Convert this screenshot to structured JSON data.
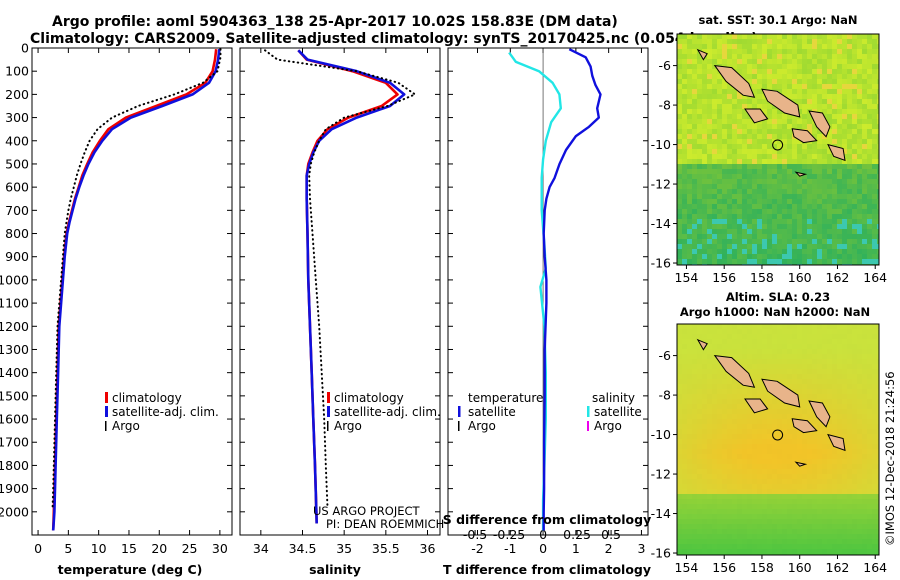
{
  "header": {
    "line1": "Argo profile: aoml 5904363_138 25-Apr-2017 10.02S 158.83E (DM data)",
    "line2": "Climatology: CARS2009. Satellite-adjusted climatology: synTS_20170425.nc (0.054d earlier)"
  },
  "colors": {
    "climatology": "#ee0000",
    "satellite": "#1010dd",
    "argo": "#000000",
    "s_diff": "#22e6e6",
    "s_argo": "#ee00ee"
  },
  "chart_data": [
    {
      "id": "temperature",
      "type": "line",
      "xlabel": "temperature (deg C)",
      "ylim": [
        2100,
        0
      ],
      "xlim": [
        -1,
        32
      ],
      "xticks": [
        0,
        5,
        10,
        15,
        20,
        25,
        30
      ],
      "yticks": [
        0,
        100,
        200,
        300,
        400,
        500,
        600,
        700,
        800,
        900,
        1000,
        1100,
        1200,
        1300,
        1400,
        1500,
        1600,
        1700,
        1800,
        1900,
        2000
      ],
      "legend": [
        "climatology",
        "satellite-adj. clim.",
        "Argo"
      ],
      "series": [
        {
          "name": "climatology",
          "style": "solid",
          "x": [
            29.4,
            29.2,
            28.8,
            27.6,
            24.5,
            19.5,
            14.5,
            11.6,
            10.2,
            9.0,
            8.1,
            7.3,
            6.7,
            6.1,
            5.6,
            5.1,
            4.7,
            4.3,
            4.0,
            3.7,
            3.4,
            3.2,
            3.0,
            2.8,
            2.6,
            2.5
          ],
          "y": [
            5,
            50,
            100,
            150,
            200,
            250,
            300,
            350,
            400,
            450,
            500,
            550,
            600,
            650,
            700,
            750,
            800,
            900,
            1000,
            1100,
            1200,
            1400,
            1600,
            1800,
            2000,
            2080
          ]
        },
        {
          "name": "satellite-adj. clim.",
          "style": "solid",
          "x": [
            29.9,
            29.7,
            29.3,
            28.2,
            25.5,
            20.5,
            15.3,
            12.2,
            10.6,
            9.3,
            8.3,
            7.5,
            6.8,
            6.2,
            5.7,
            5.2,
            4.8,
            4.4,
            4.1,
            3.8,
            3.5,
            3.3,
            3.1,
            2.9,
            2.7,
            2.5
          ],
          "y": [
            5,
            50,
            100,
            150,
            200,
            250,
            300,
            350,
            400,
            450,
            500,
            550,
            600,
            650,
            700,
            750,
            800,
            900,
            1000,
            1100,
            1200,
            1400,
            1600,
            1800,
            2000,
            2080
          ]
        },
        {
          "name": "Argo",
          "style": "dotted",
          "x": [
            30.1,
            30.1,
            29.6,
            27.2,
            22.5,
            16.5,
            12.2,
            9.8,
            8.5,
            7.7,
            7.0,
            6.4,
            5.9,
            5.4,
            5.0,
            4.7,
            4.4,
            4.1,
            3.8,
            3.5,
            3.2,
            3.0,
            2.8,
            2.6,
            2.5,
            2.4
          ],
          "y": [
            5,
            40,
            100,
            150,
            200,
            250,
            300,
            350,
            400,
            450,
            500,
            550,
            600,
            650,
            700,
            750,
            800,
            900,
            1000,
            1100,
            1200,
            1400,
            1600,
            1800,
            1900,
            1980
          ]
        }
      ]
    },
    {
      "id": "salinity",
      "type": "line",
      "xlabel": "salinity",
      "ylim": [
        2100,
        0
      ],
      "xlim": [
        33.75,
        36.15
      ],
      "xticks": [
        34,
        34.5,
        35,
        35.5,
        36
      ],
      "legend": [
        "climatology",
        "satellite-adj. clim.",
        "Argo"
      ],
      "series": [
        {
          "name": "climatology",
          "style": "solid",
          "x": [
            34.45,
            34.55,
            35.1,
            35.5,
            35.64,
            35.45,
            35.05,
            34.8,
            34.68,
            34.62,
            34.57,
            34.55,
            34.55,
            34.56,
            34.57,
            34.59,
            34.61,
            34.63,
            34.65,
            34.67
          ],
          "y": [
            10,
            50,
            100,
            150,
            200,
            250,
            300,
            350,
            400,
            450,
            500,
            550,
            650,
            800,
            1000,
            1200,
            1400,
            1600,
            1800,
            2050
          ]
        },
        {
          "name": "satellite-adj. clim.",
          "style": "solid",
          "x": [
            34.45,
            34.56,
            35.15,
            35.55,
            35.72,
            35.55,
            35.15,
            34.85,
            34.7,
            34.63,
            34.58,
            34.55,
            34.55,
            34.56,
            34.57,
            34.59,
            34.61,
            34.63,
            34.65,
            34.67
          ],
          "y": [
            10,
            50,
            100,
            150,
            200,
            250,
            300,
            350,
            400,
            450,
            500,
            550,
            650,
            800,
            1000,
            1200,
            1400,
            1600,
            1800,
            2050
          ]
        },
        {
          "name": "Argo",
          "style": "dotted",
          "x": [
            34.05,
            34.2,
            35.15,
            35.65,
            35.85,
            35.52,
            35.0,
            34.78,
            34.7,
            34.64,
            34.6,
            34.58,
            34.59,
            34.62,
            34.66,
            34.7,
            34.73,
            34.76,
            34.78,
            34.8
          ],
          "y": [
            10,
            50,
            100,
            150,
            200,
            250,
            300,
            350,
            400,
            450,
            500,
            550,
            650,
            800,
            1000,
            1200,
            1400,
            1600,
            1800,
            1980
          ]
        }
      ]
    },
    {
      "id": "difference",
      "type": "line",
      "xlabel": "T difference from climatology",
      "xlabel_top": "S difference from climatology",
      "ylim": [
        2100,
        0
      ],
      "xlim": [
        -2.9,
        3.2
      ],
      "xticks": [
        -2,
        -1,
        0,
        1,
        2,
        3
      ],
      "xticks_s": [
        -0.5,
        -0.25,
        0,
        0.25,
        0.5
      ],
      "xticks_s_labels": [
        "-0.5",
        "-0.25",
        "0",
        "0.25",
        "0.5"
      ],
      "legend_t_title": "temperature",
      "legend_s_title": "salinity",
      "legend_t": [
        "satellite",
        "Argo"
      ],
      "legend_s": [
        "satellite",
        "Argo"
      ],
      "series": [
        {
          "name": "T satellite",
          "axis": "T",
          "x": [
            0.8,
            1.3,
            1.45,
            1.5,
            1.6,
            1.75,
            1.65,
            1.7,
            1.4,
            1.0,
            0.7,
            0.5,
            0.35,
            0.2,
            0.1,
            0.05,
            0.02,
            0.05,
            0.1,
            0.1,
            0.05,
            0.05,
            0.03,
            0.03,
            0.02,
            0.02
          ],
          "y": [
            5,
            40,
            80,
            120,
            160,
            200,
            260,
            300,
            340,
            380,
            440,
            500,
            560,
            600,
            650,
            700,
            800,
            900,
            1000,
            1100,
            1300,
            1500,
            1700,
            1900,
            2000,
            2080
          ]
        },
        {
          "name": "S satellite",
          "axis": "S",
          "x": [
            -0.25,
            -0.2,
            -0.03,
            0.07,
            0.12,
            0.13,
            0.06,
            0.02,
            0.0,
            -0.01,
            -0.01,
            0.01,
            0.02,
            -0.02,
            0.01,
            0.02,
            0.02,
            0.01,
            0.0,
            0.0
          ],
          "y": [
            20,
            60,
            100,
            150,
            200,
            260,
            320,
            400,
            480,
            560,
            700,
            850,
            950,
            1030,
            1200,
            1400,
            1600,
            1800,
            1950,
            2080
          ]
        }
      ]
    },
    {
      "id": "sst_map",
      "type": "heatmap",
      "title": "sat. SST: 30.1 Argo: NaN",
      "xticks": [
        154,
        156,
        158,
        160,
        162,
        164
      ],
      "yticks": [
        -6,
        -8,
        -10,
        -12,
        -14,
        -16
      ],
      "xlim": [
        153.5,
        164.2
      ],
      "ylim": [
        -16.1,
        -4.4
      ],
      "profile": [
        158.83,
        -10.02
      ]
    },
    {
      "id": "sla_map",
      "type": "heatmap",
      "title": "Altim. SLA: 0.23",
      "subtitle": "Argo h1000: NaN h2000: NaN",
      "xticks": [
        154,
        156,
        158,
        160,
        162,
        164
      ],
      "yticks": [
        -6,
        -8,
        -10,
        -12,
        -14,
        -16
      ],
      "xlim": [
        153.5,
        164.2
      ],
      "ylim": [
        -16.1,
        -4.4
      ],
      "profile": [
        158.83,
        -10.02
      ]
    }
  ],
  "credit": {
    "line1": "US ARGO PROJECT",
    "line2": "PI: DEAN ROEMMICH"
  },
  "stamp": "©IMOS 12-Dec-2018 21:24:56"
}
